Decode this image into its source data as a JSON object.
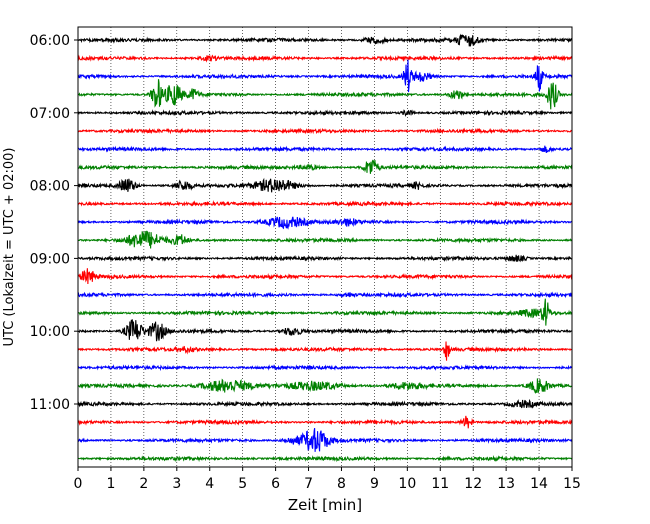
{
  "chart_data": {
    "type": "line",
    "title": "",
    "xlabel": "Zeit  [min]",
    "ylabel": "UTC (Lokalzeit = UTC + 02:00)",
    "xlim": [
      0,
      15
    ],
    "xticks": [
      "0",
      "1",
      "2",
      "3",
      "4",
      "5",
      "6",
      "7",
      "8",
      "9",
      "10",
      "11",
      "12",
      "13",
      "14",
      "15"
    ],
    "grid": "vertical-dotted",
    "legend": "none",
    "trace_interval_min": 15,
    "y_tick_labels": [
      {
        "label": "06:00",
        "trace_index": 0
      },
      {
        "label": "07:00",
        "trace_index": 4
      },
      {
        "label": "08:00",
        "trace_index": 8
      },
      {
        "label": "09:00",
        "trace_index": 12
      },
      {
        "label": "10:00",
        "trace_index": 16
      },
      {
        "label": "11:00",
        "trace_index": 20
      }
    ],
    "colors": [
      "#000000",
      "#ff0000",
      "#0000ff",
      "#008000"
    ],
    "traces": [
      {
        "start": "06:00",
        "color": "#000000",
        "events": [
          {
            "t": 9.0,
            "amp": 0.35,
            "dur": 0.6
          },
          {
            "t": 11.8,
            "amp": 0.6,
            "dur": 0.7
          }
        ]
      },
      {
        "start": "06:15",
        "color": "#ff0000",
        "events": [
          {
            "t": 4.0,
            "amp": 0.2,
            "dur": 0.5
          }
        ]
      },
      {
        "start": "06:30",
        "color": "#0000ff",
        "events": [
          {
            "t": 10.0,
            "amp": 1.6,
            "dur": 0.2
          },
          {
            "t": 10.4,
            "amp": 0.45,
            "dur": 0.6
          },
          {
            "t": 14.0,
            "amp": 1.4,
            "dur": 0.2
          }
        ]
      },
      {
        "start": "06:45",
        "color": "#008000",
        "events": [
          {
            "t": 2.4,
            "amp": 1.6,
            "dur": 0.3
          },
          {
            "t": 2.9,
            "amp": 1.1,
            "dur": 0.5
          },
          {
            "t": 3.5,
            "amp": 0.5,
            "dur": 0.3
          },
          {
            "t": 11.5,
            "amp": 0.5,
            "dur": 0.4
          },
          {
            "t": 14.4,
            "amp": 1.5,
            "dur": 0.3
          }
        ]
      },
      {
        "start": "07:00",
        "color": "#000000",
        "events": [
          {
            "t": 10.0,
            "amp": 0.3,
            "dur": 0.3
          }
        ]
      },
      {
        "start": "07:15",
        "color": "#ff0000",
        "events": []
      },
      {
        "start": "07:30",
        "color": "#0000ff",
        "events": [
          {
            "t": 14.2,
            "amp": 0.3,
            "dur": 0.3
          }
        ]
      },
      {
        "start": "07:45",
        "color": "#008000",
        "events": [
          {
            "t": 8.9,
            "amp": 0.9,
            "dur": 0.4
          },
          {
            "t": 7.0,
            "amp": 0.2,
            "dur": 0.6
          }
        ]
      },
      {
        "start": "08:00",
        "color": "#000000",
        "events": [
          {
            "t": 1.5,
            "amp": 0.7,
            "dur": 0.5
          },
          {
            "t": 3.2,
            "amp": 0.5,
            "dur": 0.5
          },
          {
            "t": 6.0,
            "amp": 0.65,
            "dur": 1.2
          },
          {
            "t": 10.3,
            "amp": 0.3,
            "dur": 0.3
          }
        ]
      },
      {
        "start": "08:15",
        "color": "#ff0000",
        "events": []
      },
      {
        "start": "08:30",
        "color": "#0000ff",
        "events": [
          {
            "t": 6.3,
            "amp": 0.55,
            "dur": 1.2
          },
          {
            "t": 8.2,
            "amp": 0.3,
            "dur": 0.6
          }
        ]
      },
      {
        "start": "08:45",
        "color": "#008000",
        "events": [
          {
            "t": 2.0,
            "amp": 0.85,
            "dur": 1.0
          },
          {
            "t": 3.1,
            "amp": 0.5,
            "dur": 0.4
          }
        ]
      },
      {
        "start": "09:00",
        "color": "#000000",
        "events": [
          {
            "t": 13.3,
            "amp": 0.3,
            "dur": 0.6
          }
        ]
      },
      {
        "start": "09:15",
        "color": "#ff0000",
        "events": [
          {
            "t": 0.3,
            "amp": 0.7,
            "dur": 0.4
          }
        ]
      },
      {
        "start": "09:30",
        "color": "#0000ff",
        "events": [
          {
            "t": 8.2,
            "amp": 0.2,
            "dur": 0.4
          }
        ]
      },
      {
        "start": "09:45",
        "color": "#008000",
        "events": [
          {
            "t": 14.2,
            "amp": 1.3,
            "dur": 0.2
          },
          {
            "t": 13.8,
            "amp": 0.3,
            "dur": 0.8
          }
        ]
      },
      {
        "start": "10:00",
        "color": "#000000",
        "events": [
          {
            "t": 1.7,
            "amp": 1.2,
            "dur": 0.5
          },
          {
            "t": 2.4,
            "amp": 0.9,
            "dur": 0.5
          },
          {
            "t": 6.5,
            "amp": 0.4,
            "dur": 0.6
          }
        ]
      },
      {
        "start": "10:15",
        "color": "#ff0000",
        "events": [
          {
            "t": 11.2,
            "amp": 1.1,
            "dur": 0.15
          },
          {
            "t": 3.3,
            "amp": 0.2,
            "dur": 0.5
          }
        ]
      },
      {
        "start": "10:30",
        "color": "#0000ff",
        "events": []
      },
      {
        "start": "10:45",
        "color": "#008000",
        "events": [
          {
            "t": 4.5,
            "amp": 0.6,
            "dur": 1.4
          },
          {
            "t": 7.2,
            "amp": 0.4,
            "dur": 1.5
          },
          {
            "t": 10.0,
            "amp": 0.3,
            "dur": 1.0
          },
          {
            "t": 14.0,
            "amp": 0.7,
            "dur": 0.6
          }
        ]
      },
      {
        "start": "11:00",
        "color": "#000000",
        "events": [
          {
            "t": 13.5,
            "amp": 0.3,
            "dur": 0.8
          }
        ]
      },
      {
        "start": "11:15",
        "color": "#ff0000",
        "events": [
          {
            "t": 11.8,
            "amp": 0.6,
            "dur": 0.3
          }
        ]
      },
      {
        "start": "11:30",
        "color": "#0000ff",
        "events": [
          {
            "t": 7.2,
            "amp": 1.2,
            "dur": 0.8
          },
          {
            "t": 6.5,
            "amp": 0.3,
            "dur": 0.5
          }
        ]
      },
      {
        "start": "11:45",
        "color": "#008000",
        "events": []
      }
    ]
  }
}
